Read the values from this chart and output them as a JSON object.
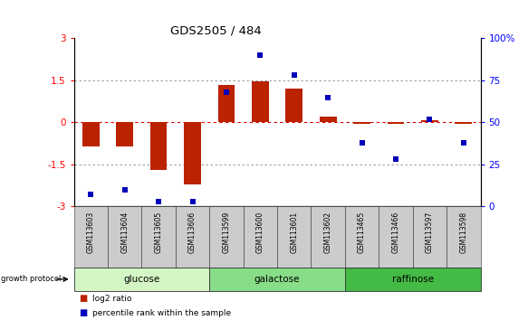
{
  "title": "GDS2505 / 484",
  "samples": [
    "GSM113603",
    "GSM113604",
    "GSM113605",
    "GSM113606",
    "GSM113599",
    "GSM113600",
    "GSM113601",
    "GSM113602",
    "GSM113465",
    "GSM113466",
    "GSM113597",
    "GSM113598"
  ],
  "log2_ratio": [
    -0.85,
    -0.85,
    -1.7,
    -2.2,
    1.35,
    1.45,
    1.2,
    0.2,
    -0.05,
    -0.05,
    0.08,
    -0.05
  ],
  "percentile_rank": [
    7,
    10,
    3,
    3,
    68,
    90,
    78,
    65,
    38,
    28,
    52,
    38
  ],
  "groups": [
    {
      "name": "glucose",
      "start": 0,
      "end": 4,
      "color": "#d4f5c4"
    },
    {
      "name": "galactose",
      "start": 4,
      "end": 8,
      "color": "#88dd88"
    },
    {
      "name": "raffinose",
      "start": 8,
      "end": 12,
      "color": "#44bb44"
    }
  ],
  "ylim_left": [
    -3,
    3
  ],
  "ylim_right": [
    0,
    100
  ],
  "yticks_left": [
    -3,
    -1.5,
    0,
    1.5,
    3
  ],
  "yticks_right": [
    0,
    25,
    50,
    75,
    100
  ],
  "ytick_labels_right": [
    "0",
    "25",
    "50",
    "75",
    "100%"
  ],
  "bar_color": "#bb2200",
  "scatter_color": "#0000bb",
  "zero_line_color": "#dd0000",
  "dotted_line_color": "#888888",
  "bar_width": 0.5,
  "marker_size": 18
}
